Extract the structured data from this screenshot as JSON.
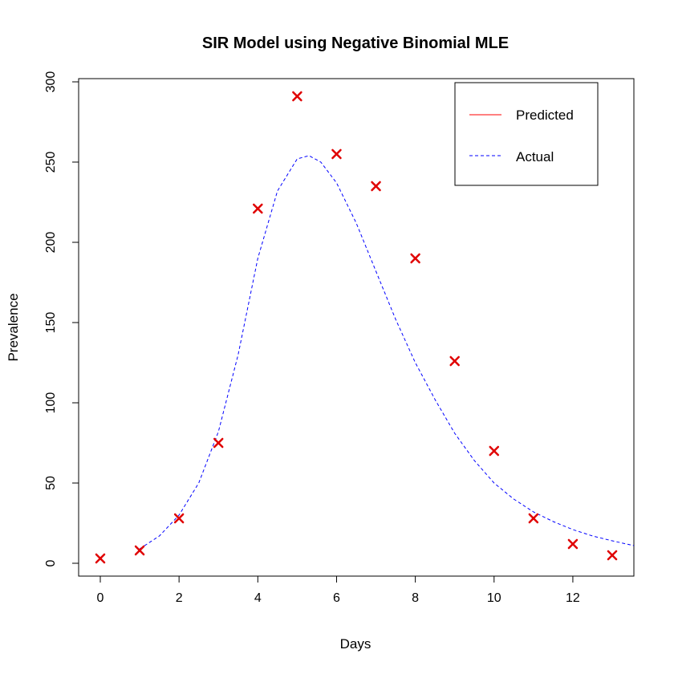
{
  "chart_data": {
    "type": "line",
    "title": "SIR Model using Negative Binomial MLE",
    "xlabel": "Days",
    "ylabel": "Prevalence",
    "xlim": [
      -0.55,
      13.55
    ],
    "ylim": [
      -8,
      302
    ],
    "xticks": [
      0,
      2,
      4,
      6,
      8,
      10,
      12
    ],
    "yticks": [
      0,
      50,
      100,
      150,
      200,
      250,
      300
    ],
    "grid": false,
    "legend": {
      "position": "top-right",
      "entries": [
        {
          "label": "Predicted",
          "color": "#ff0000",
          "style": "solid"
        },
        {
          "label": "Actual",
          "color": "#0000ff",
          "style": "dashed"
        }
      ]
    },
    "curve": {
      "color": "#0000ff",
      "style": "dashed",
      "x": [
        1,
        1.5,
        2,
        2.5,
        3,
        3.5,
        4,
        4.5,
        5,
        5.3,
        5.6,
        6,
        6.5,
        7,
        7.5,
        8,
        8.5,
        9,
        9.5,
        10,
        10.5,
        11,
        11.5,
        12,
        12.5,
        13,
        13.55
      ],
      "y": [
        9,
        17,
        30,
        50,
        82,
        130,
        190,
        232,
        252,
        254,
        250,
        237,
        212,
        182,
        152,
        125,
        102,
        81,
        64,
        50,
        40,
        32,
        26,
        21,
        17,
        14,
        11
      ]
    },
    "points": {
      "color": "#e00000",
      "marker": "x",
      "x": [
        0,
        1,
        2,
        3,
        4,
        5,
        6,
        7,
        8,
        9,
        10,
        11,
        12,
        13
      ],
      "y": [
        3,
        8,
        28,
        75,
        221,
        291,
        255,
        235,
        190,
        126,
        70,
        28,
        12,
        5
      ]
    }
  }
}
